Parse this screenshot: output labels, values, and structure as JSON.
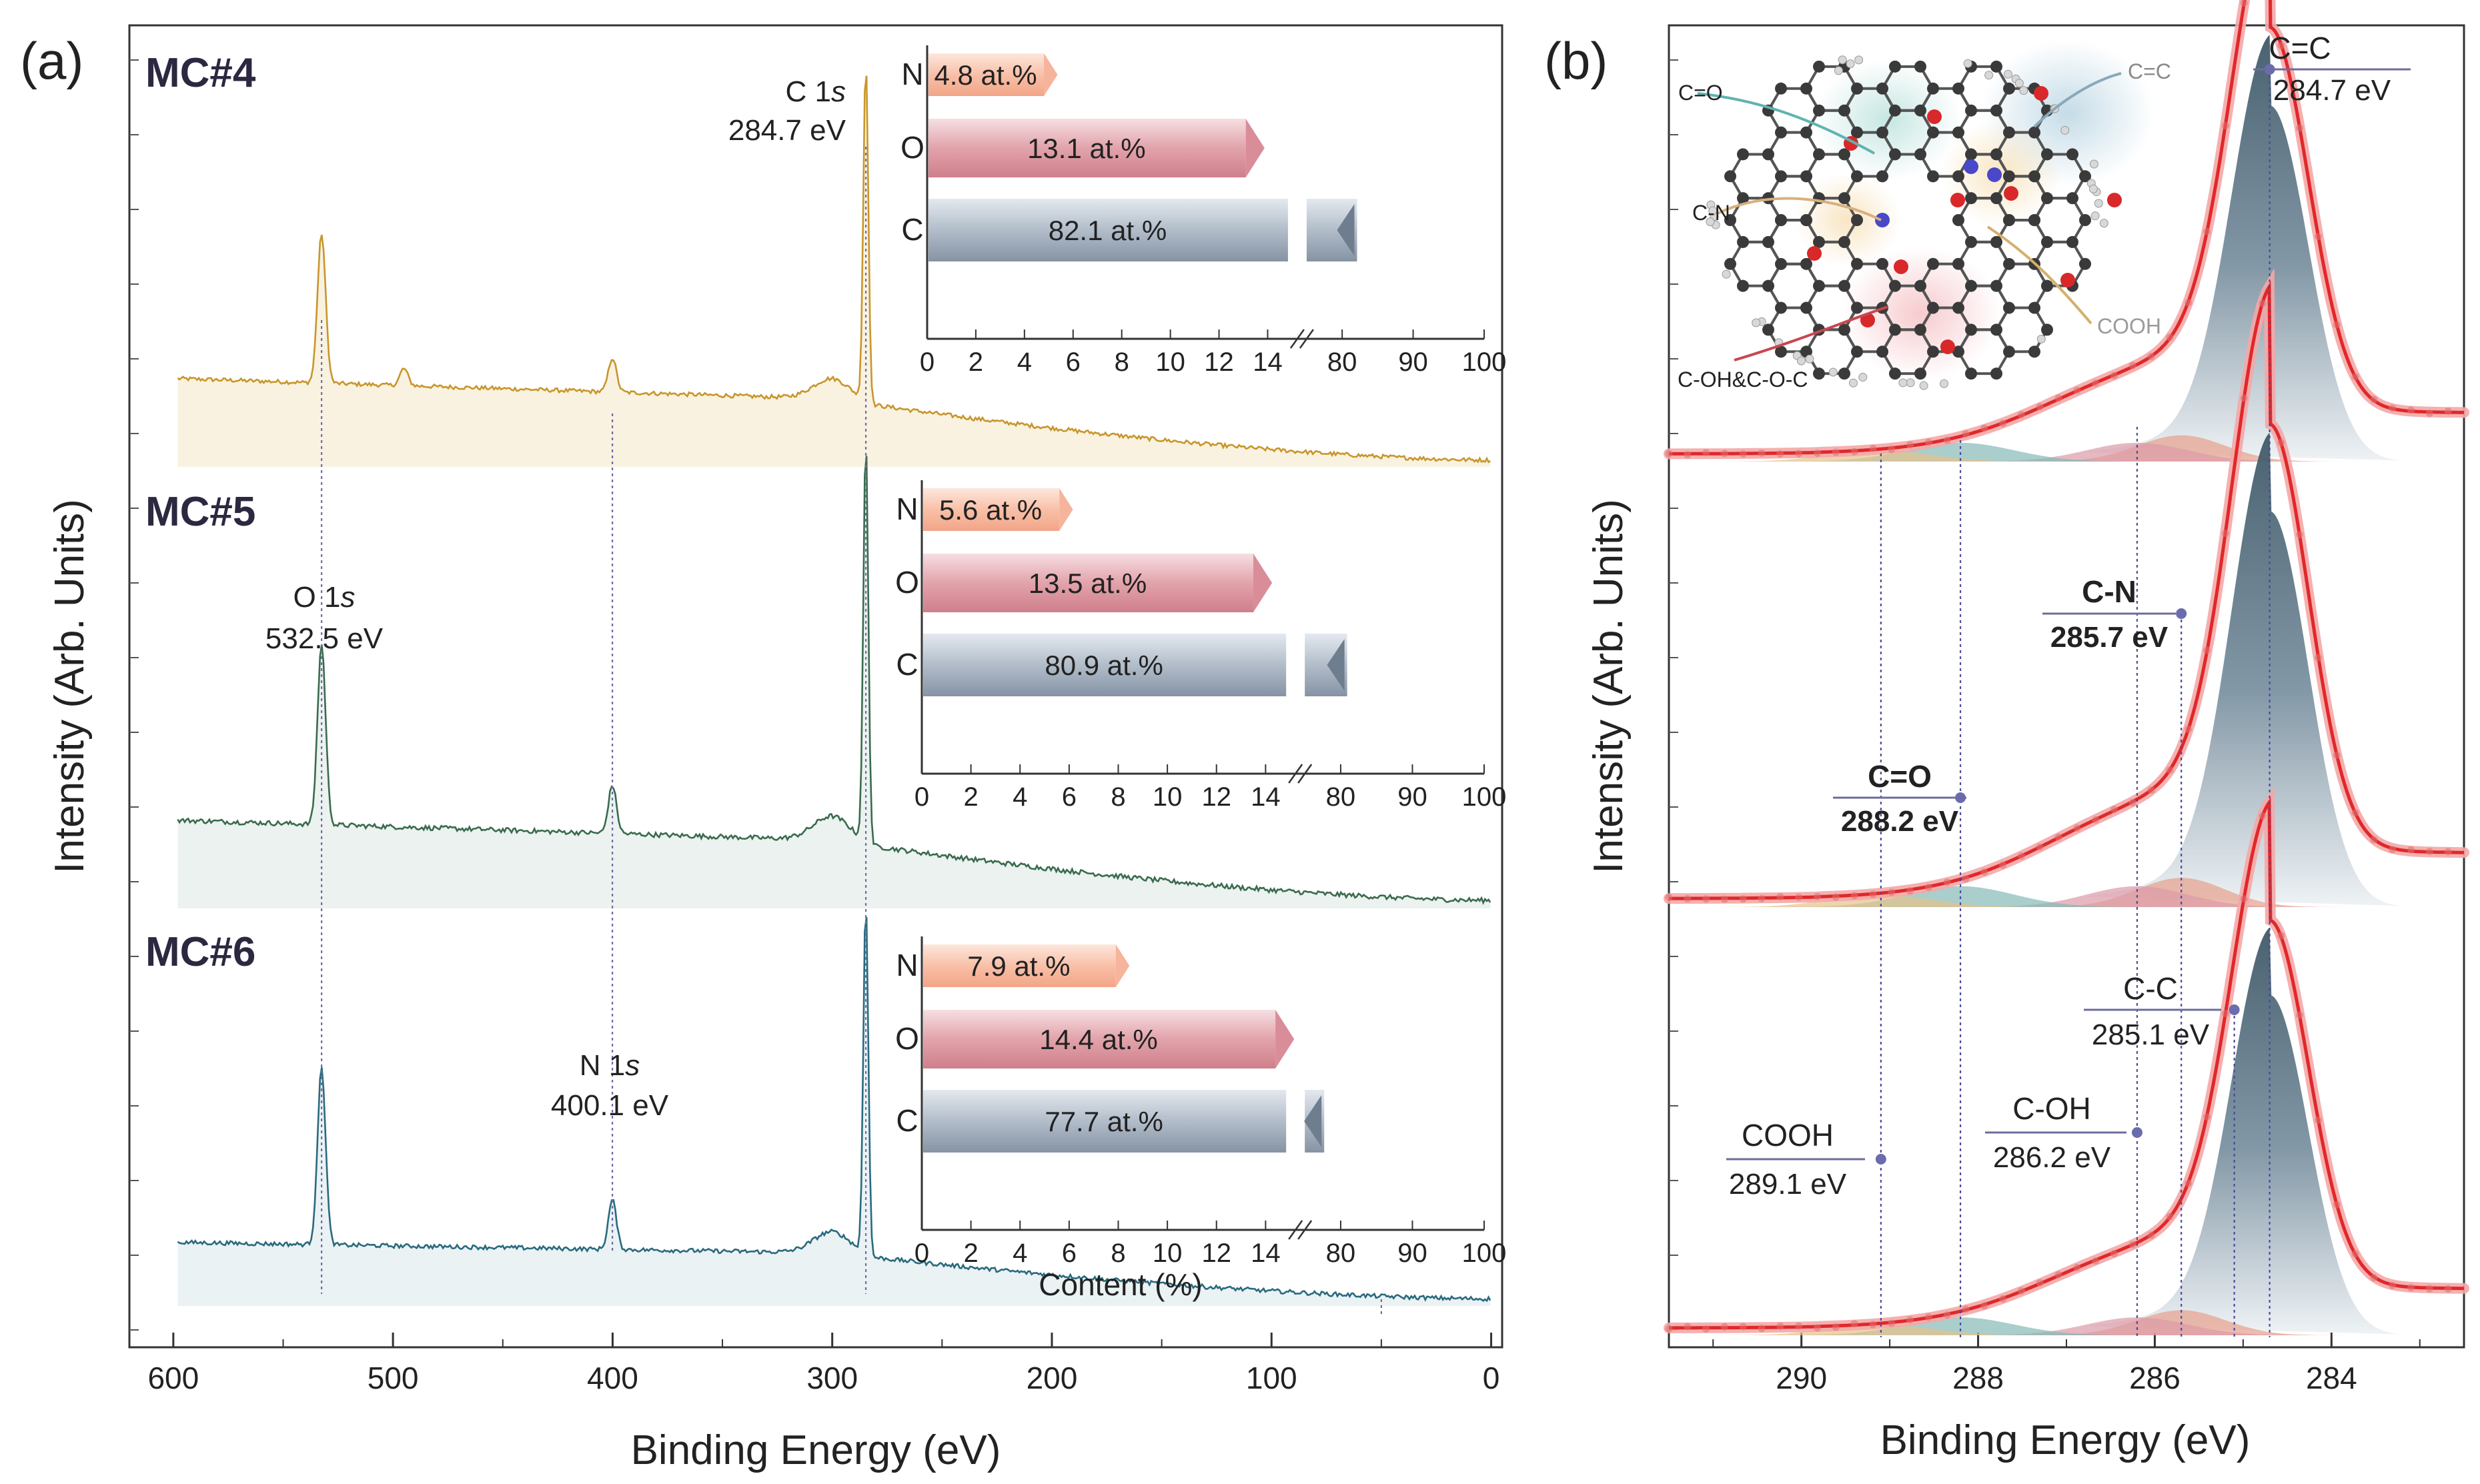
{
  "figure": {
    "panel_a_label": "(a)",
    "panel_b_label": "(b)"
  },
  "chart_data": [
    {
      "type": "line",
      "panel": "(a)",
      "title": "",
      "xlabel": "Binding Energy (eV)",
      "ylabel": "Intensity (Arb. Units)",
      "xlim": [
        620,
        -5
      ],
      "xticks": [
        600,
        500,
        400,
        300,
        200,
        100,
        0
      ],
      "series": [
        {
          "name": "MC#4",
          "color": "#c8962a",
          "fill": "#f6ecd4",
          "peaks": [
            {
              "x": 532.5,
              "h": 0.44
            },
            {
              "x": 400.1,
              "h": 0.1
            },
            {
              "x": 495,
              "h": 0.05
            },
            {
              "x": 284.7,
              "h": 1.0
            }
          ],
          "baseline": {
            "x600": 0.26,
            "x300": 0.2,
            "x0": 0.02
          }
        },
        {
          "name": "MC#5",
          "color": "#3a6b4e",
          "fill": "#e4ede8",
          "peaks": [
            {
              "x": 532.5,
              "h": 0.45
            },
            {
              "x": 400.1,
              "h": 0.12
            },
            {
              "x": 284.7,
              "h": 1.0
            }
          ],
          "baseline": {
            "x600": 0.22,
            "x300": 0.17,
            "x0": 0.02
          }
        },
        {
          "name": "MC#6",
          "color": "#2a6a7e",
          "fill": "#e2ecf0",
          "peaks": [
            {
              "x": 532.5,
              "h": 0.5
            },
            {
              "x": 400.1,
              "h": 0.14
            },
            {
              "x": 284.7,
              "h": 1.0
            }
          ],
          "baseline": {
            "x600": 0.18,
            "x300": 0.15,
            "x0": 0.02
          }
        }
      ],
      "annotations": [
        {
          "name": "C 1s",
          "line1": "C 1",
          "italic": "s",
          "value": "284.7 eV"
        },
        {
          "name": "O 1s",
          "line1": "O 1",
          "italic": "s",
          "value": "532.5 eV"
        },
        {
          "name": "N 1s",
          "line1": "N 1",
          "italic": "s",
          "value": "400.1 eV"
        }
      ]
    },
    {
      "type": "bar",
      "panel": "(a) insets",
      "xlabel": "Content (%)",
      "xticks_left": [
        0,
        2,
        4,
        6,
        8,
        10,
        12,
        14
      ],
      "xticks_right": [
        80,
        90,
        100
      ],
      "categories": [
        "N",
        "O",
        "C"
      ],
      "samples": [
        {
          "name": "MC#4",
          "values": [
            4.8,
            13.1,
            82.1
          ],
          "labels": [
            "4.8 at.%",
            "13.1 at.%",
            "82.1 at.%"
          ]
        },
        {
          "name": "MC#5",
          "values": [
            5.6,
            13.5,
            80.9
          ],
          "labels": [
            "5.6 at.%",
            "13.5 at.%",
            "80.9 at.%"
          ]
        },
        {
          "name": "MC#6",
          "values": [
            7.9,
            14.4,
            77.7
          ],
          "labels": [
            "7.9 at.%",
            "14.4 at.%",
            "77.7 at.%"
          ]
        }
      ],
      "colors": {
        "N": "#f6b49c",
        "O": "#d98d98",
        "C": "#8f9eae"
      }
    },
    {
      "type": "line",
      "panel": "(b)",
      "title": "",
      "xlabel": "Binding Energy (eV)",
      "ylabel": "Intensity (Arb. Units)",
      "xlim": [
        291.5,
        282.5
      ],
      "xticks": [
        290,
        288,
        286,
        284
      ],
      "components": [
        {
          "name": "C=C",
          "center": 284.7,
          "value": "284.7 eV"
        },
        {
          "name": "C-C",
          "center": 285.1,
          "value": "285.1 eV"
        },
        {
          "name": "C-N",
          "center": 285.7,
          "value": "285.7 eV"
        },
        {
          "name": "C-OH",
          "center": 286.2,
          "value": "286.2 eV"
        },
        {
          "name": "C=O",
          "center": 288.2,
          "value": "288.2 eV"
        },
        {
          "name": "COOH",
          "center": 289.1,
          "value": "289.1 eV"
        }
      ],
      "molecule_labels": [
        "C=O",
        "C=C",
        "C-N",
        "COOH",
        "C-OH&C-O-C"
      ]
    }
  ]
}
